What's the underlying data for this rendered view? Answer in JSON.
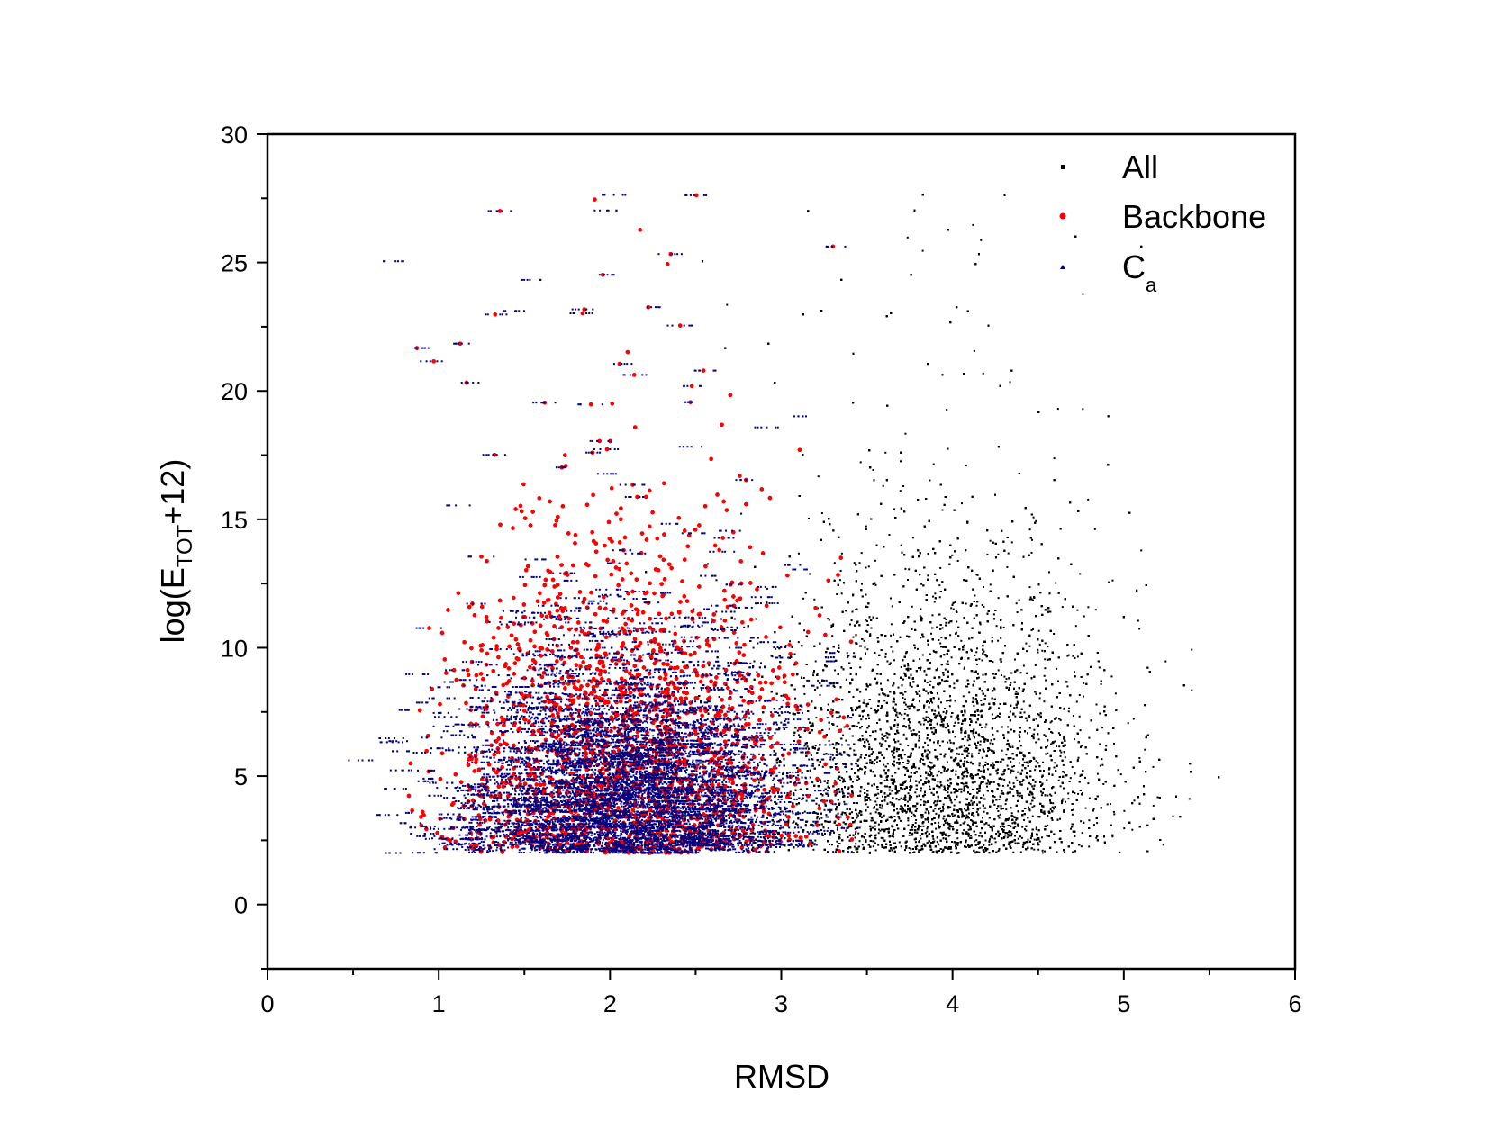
{
  "chart_data": {
    "type": "scatter",
    "xlabel": "RMSD",
    "ylabel": {
      "prefix": "log(E",
      "subscript": "TOT",
      "suffix": "+12)"
    },
    "xlim": [
      0,
      6
    ],
    "ylim": [
      -2.5,
      30
    ],
    "x_ticks": [
      0,
      1,
      2,
      3,
      4,
      5,
      6
    ],
    "y_ticks": [
      0,
      5,
      10,
      15,
      20,
      25,
      30
    ],
    "legend_position": "top-right",
    "grid": false,
    "series": [
      {
        "name": "All",
        "color": "#000000",
        "marker": "square",
        "description_range": {
          "x": [
            0.3,
            5.6
          ],
          "y": [
            2.0,
            27.7
          ]
        },
        "core": {
          "x_center": 3.9,
          "x_spread": 0.5,
          "y_range": [
            2.0,
            17.0
          ]
        }
      },
      {
        "name": "Backbone",
        "color": "#ff0000",
        "marker": "circle",
        "description_range": {
          "x": [
            0.8,
            3.5
          ],
          "y": [
            1.8,
            27.7
          ]
        },
        "core": {
          "x_center": 2.1,
          "x_spread": 0.5,
          "y_range": [
            2.0,
            17.0
          ]
        }
      },
      {
        "name_base": "C",
        "name_sub": "a",
        "color": "#000080",
        "marker": "triangle",
        "description_range": {
          "x": [
            0.3,
            3.4
          ],
          "y": [
            2.0,
            27.7
          ]
        },
        "core": {
          "x_center": 2.1,
          "x_spread": 0.5,
          "y_range": [
            2.0,
            17.0
          ]
        }
      }
    ]
  }
}
